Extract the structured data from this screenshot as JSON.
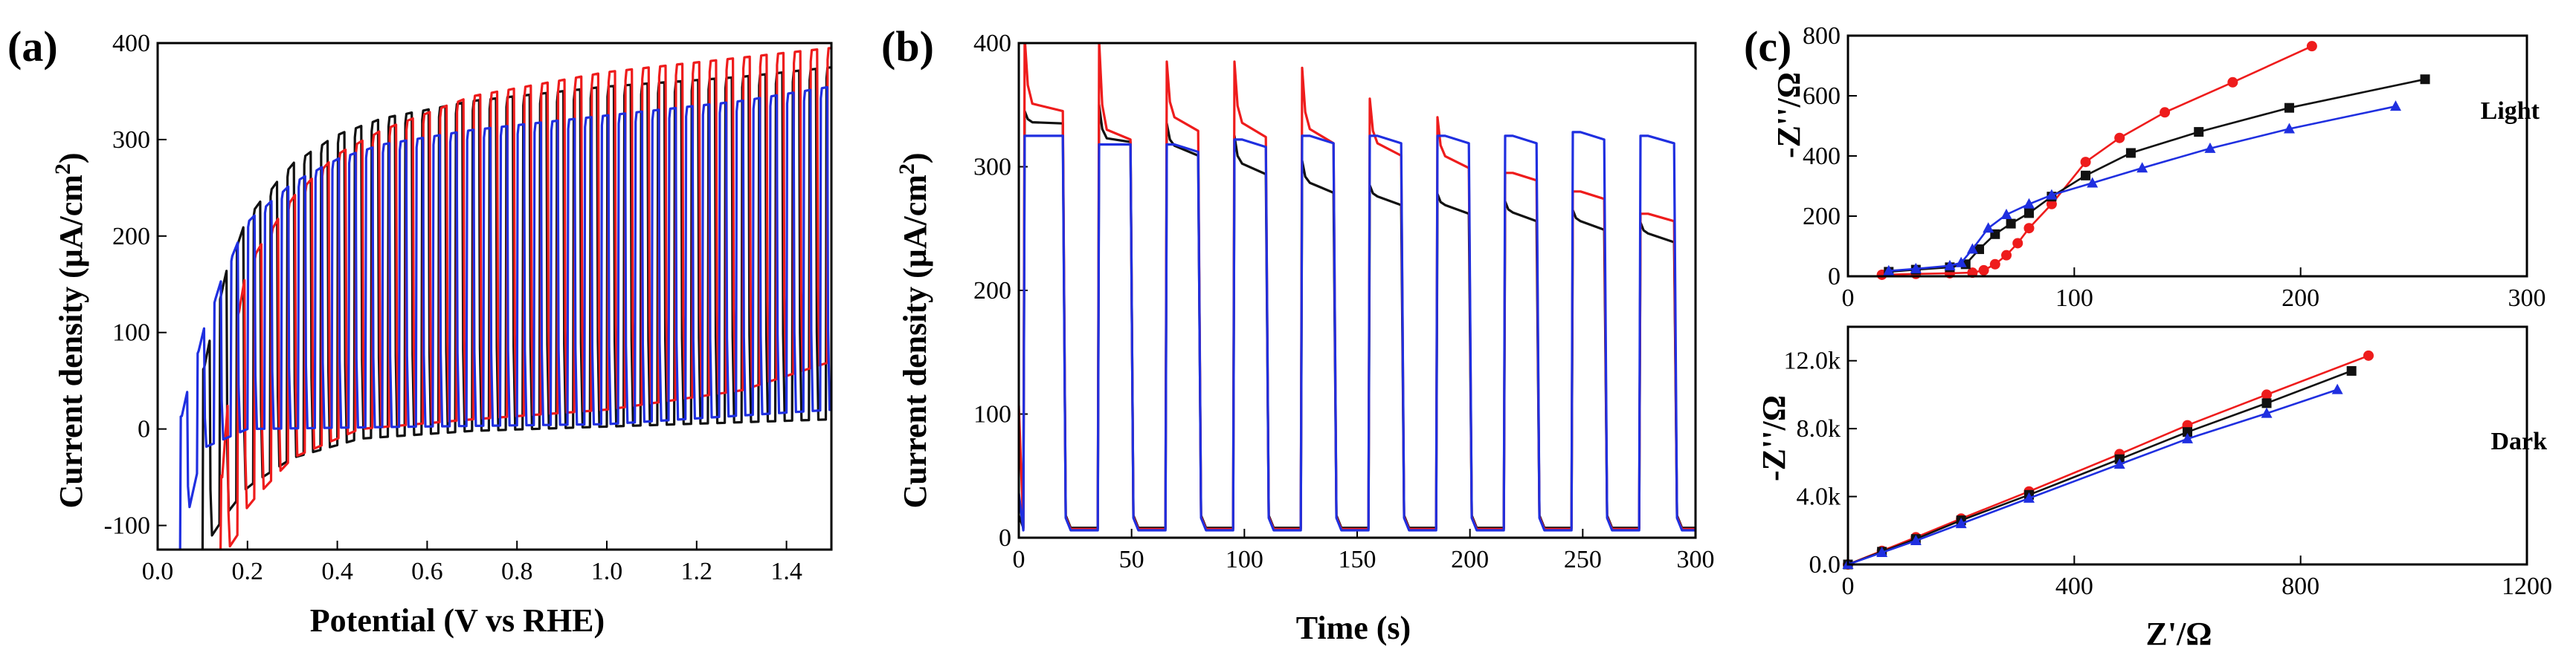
{
  "colors": {
    "red": "#ee1c1c",
    "black": "#111111",
    "blue": "#1f2fe0"
  },
  "chart_data": [
    {
      "panel": "(a)",
      "type": "line",
      "title": "",
      "xlabel": "Potential (V vs RHE)",
      "ylabel": "Current density (μA/cm²)",
      "ylabel_parts": {
        "pre": "Current density (μA/cm",
        "sup": "2",
        "post": ")"
      },
      "xlim": [
        0.0,
        1.5
      ],
      "ylim": [
        -125,
        400
      ],
      "xticks": [
        "0.0",
        "0.2",
        "0.4",
        "0.6",
        "0.8",
        "1.0",
        "1.2",
        "1.4"
      ],
      "yticks": [
        "-100",
        "0",
        "100",
        "200",
        "300",
        "400"
      ],
      "xtick_values": [
        0.0,
        0.2,
        0.4,
        0.6,
        0.8,
        1.0,
        1.2,
        1.4
      ],
      "ytick_values": [
        -100,
        0,
        100,
        200,
        300,
        400
      ],
      "chopped": true,
      "series": [
        {
          "name": "black",
          "color": "black",
          "onset_potential": 0.1,
          "dark": [
            [
              0.1,
              -125
            ],
            [
              0.15,
              -90
            ],
            [
              0.2,
              -60
            ],
            [
              0.3,
              -30
            ],
            [
              0.45,
              -10
            ],
            [
              0.7,
              -2
            ],
            [
              1.5,
              10
            ]
          ],
          "light": [
            [
              0.1,
              60
            ],
            [
              0.15,
              160
            ],
            [
              0.2,
              220
            ],
            [
              0.3,
              275
            ],
            [
              0.4,
              305
            ],
            [
              0.5,
              322
            ],
            [
              0.7,
              340
            ],
            [
              1.0,
              355
            ],
            [
              1.3,
              365
            ],
            [
              1.5,
              375
            ]
          ]
        },
        {
          "name": "red",
          "color": "red",
          "onset_potential": 0.14,
          "dark": [
            [
              0.14,
              -125
            ],
            [
              0.17,
              -120
            ],
            [
              0.2,
              -80
            ],
            [
              0.3,
              -30
            ],
            [
              0.45,
              0
            ],
            [
              0.7,
              10
            ],
            [
              1.0,
              20
            ],
            [
              1.3,
              40
            ],
            [
              1.5,
              70
            ]
          ],
          "light": [
            [
              0.14,
              -60
            ],
            [
              0.17,
              100
            ],
            [
              0.2,
              170
            ],
            [
              0.3,
              240
            ],
            [
              0.4,
              285
            ],
            [
              0.5,
              310
            ],
            [
              0.7,
              345
            ],
            [
              1.0,
              370
            ],
            [
              1.3,
              385
            ],
            [
              1.5,
              395
            ]
          ]
        },
        {
          "name": "blue",
          "color": "blue",
          "onset_potential": 0.05,
          "dark": [
            [
              0.05,
              -125
            ],
            [
              0.1,
              -20
            ],
            [
              0.2,
              0
            ],
            [
              0.5,
              2
            ],
            [
              1.0,
              5
            ],
            [
              1.5,
              20
            ]
          ],
          "light": [
            [
              0.05,
              10
            ],
            [
              0.1,
              100
            ],
            [
              0.15,
              165
            ],
            [
              0.2,
              215
            ],
            [
              0.3,
              255
            ],
            [
              0.4,
              280
            ],
            [
              0.5,
              295
            ],
            [
              0.7,
              310
            ],
            [
              1.0,
              325
            ],
            [
              1.3,
              340
            ],
            [
              1.5,
              355
            ]
          ]
        }
      ]
    },
    {
      "panel": "(b)",
      "type": "line",
      "title": "",
      "xlabel": "Time (s)",
      "ylabel": "Current density (μA/cm²)",
      "ylabel_parts": {
        "pre": "Current density (μA/cm",
        "sup": "2",
        "post": ")"
      },
      "xlim": [
        0,
        300
      ],
      "ylim": [
        0,
        400
      ],
      "xticks": [
        "0",
        "50",
        "100",
        "150",
        "200",
        "250",
        "300"
      ],
      "yticks": [
        "0",
        "100",
        "200",
        "300",
        "400"
      ],
      "xtick_values": [
        0,
        50,
        100,
        150,
        200,
        250,
        300
      ],
      "ytick_values": [
        0,
        100,
        200,
        300,
        400
      ],
      "on_intervals": [
        [
          2,
          20
        ],
        [
          35,
          50
        ],
        [
          65,
          80
        ],
        [
          95,
          110
        ],
        [
          125,
          140
        ],
        [
          155,
          170
        ],
        [
          185,
          200
        ],
        [
          215,
          230
        ],
        [
          245,
          260
        ],
        [
          275,
          291
        ]
      ],
      "series": [
        {
          "name": "black",
          "color": "black",
          "dark": 8,
          "plateau": [
            335,
            320,
            315,
            300,
            285,
            275,
            268,
            262,
            255,
            245
          ],
          "spike": [
            10,
            30,
            20,
            25,
            20,
            10,
            10,
            10,
            10,
            10
          ]
        },
        {
          "name": "red",
          "color": "red",
          "dark": 7,
          "plateau": [
            345,
            322,
            335,
            330,
            325,
            315,
            305,
            295,
            280,
            262
          ],
          "spike": [
            60,
            80,
            50,
            55,
            55,
            40,
            35,
            0,
            0,
            0
          ]
        },
        {
          "name": "blue",
          "color": "blue",
          "dark": 6,
          "plateau": [
            325,
            318,
            318,
            322,
            325,
            325,
            325,
            325,
            328,
            325
          ],
          "spike": [
            0,
            0,
            0,
            0,
            0,
            0,
            0,
            0,
            0,
            0
          ]
        }
      ]
    },
    {
      "panel": "(c) Light",
      "type": "scatter-line",
      "annotation": "Light",
      "xlabel": "",
      "ylabel": "-Z''/Ω",
      "xlim": [
        0,
        300
      ],
      "ylim": [
        0,
        800
      ],
      "xticks": [
        "0",
        "100",
        "200",
        "300"
      ],
      "yticks": [
        "0",
        "200",
        "400",
        "600",
        "800"
      ],
      "xtick_values": [
        0,
        100,
        200,
        300
      ],
      "ytick_values": [
        0,
        200,
        400,
        600,
        800
      ],
      "series": [
        {
          "name": "red",
          "color": "red",
          "marker": "circle",
          "x": [
            15,
            30,
            45,
            55,
            60,
            65,
            70,
            75,
            80,
            90,
            105,
            120,
            140,
            170,
            205
          ],
          "y": [
            5,
            8,
            10,
            12,
            20,
            40,
            70,
            110,
            160,
            240,
            380,
            460,
            545,
            645,
            765
          ]
        },
        {
          "name": "black",
          "color": "black",
          "marker": "square",
          "x": [
            18,
            30,
            45,
            52,
            58,
            65,
            72,
            80,
            90,
            105,
            125,
            155,
            195,
            255
          ],
          "y": [
            15,
            22,
            30,
            40,
            90,
            140,
            175,
            210,
            265,
            335,
            410,
            480,
            560,
            655
          ]
        },
        {
          "name": "blue",
          "color": "blue",
          "marker": "triangle",
          "x": [
            18,
            30,
            45,
            50,
            55,
            62,
            70,
            80,
            90,
            108,
            130,
            160,
            195,
            242
          ],
          "y": [
            18,
            25,
            35,
            45,
            90,
            160,
            205,
            240,
            270,
            310,
            360,
            425,
            490,
            565
          ]
        }
      ]
    },
    {
      "panel": "(c) Dark",
      "type": "scatter-line",
      "annotation": "Dark",
      "xlabel": "Z'/Ω",
      "ylabel": "-Z''/Ω",
      "xlim": [
        0,
        1200
      ],
      "ylim": [
        0,
        14000
      ],
      "xticks": [
        "0",
        "400",
        "800",
        "1200"
      ],
      "yticks": [
        "0.0",
        "4.0k",
        "8.0k",
        "12.0k"
      ],
      "xtick_values": [
        0,
        400,
        800,
        1200
      ],
      "ytick_values": [
        0,
        4000,
        8000,
        12000
      ],
      "series": [
        {
          "name": "red",
          "color": "red",
          "marker": "circle",
          "x": [
            0,
            60,
            120,
            200,
            320,
            480,
            600,
            740,
            920
          ],
          "y": [
            0,
            800,
            1600,
            2700,
            4300,
            6500,
            8200,
            10000,
            12300
          ]
        },
        {
          "name": "black",
          "color": "black",
          "marker": "square",
          "x": [
            0,
            60,
            120,
            200,
            320,
            480,
            600,
            740,
            890
          ],
          "y": [
            0,
            750,
            1500,
            2600,
            4100,
            6200,
            7800,
            9500,
            11400
          ]
        },
        {
          "name": "blue",
          "color": "blue",
          "marker": "triangle",
          "x": [
            0,
            60,
            120,
            200,
            320,
            480,
            600,
            740,
            865
          ],
          "y": [
            0,
            700,
            1400,
            2400,
            3900,
            5900,
            7400,
            8900,
            10300
          ]
        }
      ]
    }
  ]
}
